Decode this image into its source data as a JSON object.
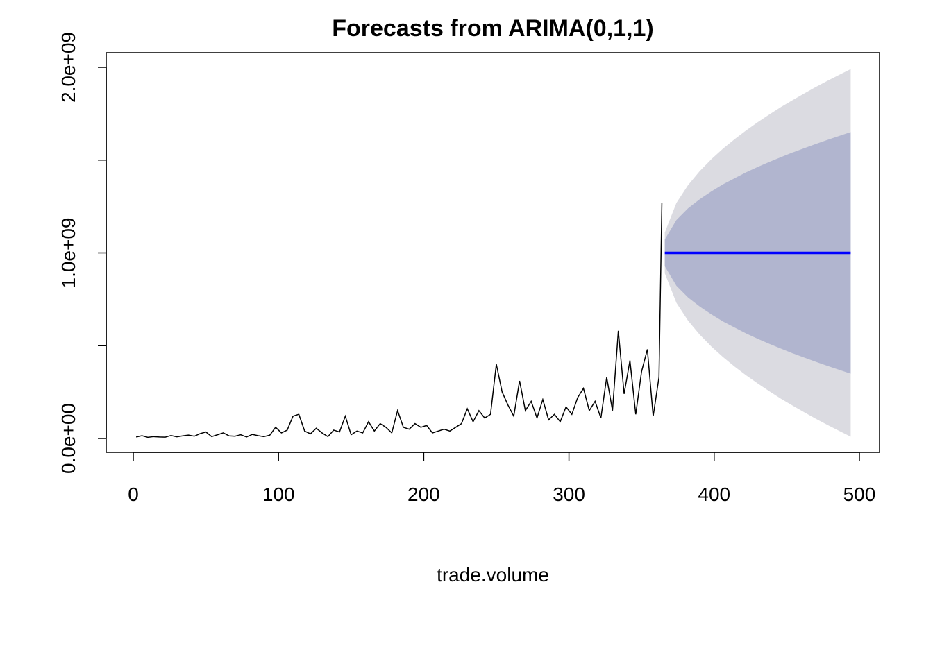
{
  "chart_data": {
    "type": "forecast",
    "title": "Forecasts from ARIMA(0,1,1)",
    "xlabel": "trade.volume",
    "xlim": [
      -18.64,
      513.88
    ],
    "ylim": [
      -74800000,
      2078500000
    ],
    "xticks": [
      0,
      100,
      200,
      300,
      400,
      500
    ],
    "yticks": [
      {
        "value": 0,
        "label": "0.0e+00"
      },
      {
        "value": 1000000000,
        "label": "1.0e+09"
      },
      {
        "value": 2000000000,
        "label": "2.0e+09"
      }
    ],
    "yminorticks": [
      500000000,
      1500000000
    ],
    "observed": {
      "color": "#000000",
      "x": [
        2,
        6,
        10,
        14,
        18,
        22,
        26,
        30,
        34,
        38,
        42,
        46,
        50,
        54,
        58,
        62,
        66,
        70,
        74,
        78,
        82,
        86,
        90,
        94,
        98,
        102,
        106,
        110,
        114,
        118,
        122,
        126,
        130,
        134,
        138,
        142,
        146,
        150,
        154,
        158,
        162,
        166,
        170,
        174,
        178,
        182,
        186,
        190,
        194,
        198,
        202,
        206,
        210,
        214,
        218,
        222,
        226,
        230,
        234,
        238,
        242,
        246,
        250,
        254,
        258,
        262,
        266,
        270,
        274,
        278,
        282,
        286,
        290,
        294,
        298,
        302,
        306,
        310,
        314,
        318,
        322,
        326,
        330,
        334,
        338,
        342,
        346,
        350,
        354,
        358,
        362,
        364
      ],
      "values": [
        8000000,
        15000000,
        6000000,
        10000000,
        8000000,
        7000000,
        16000000,
        9000000,
        14000000,
        18000000,
        12000000,
        26000000,
        35000000,
        10000000,
        20000000,
        30000000,
        14000000,
        12000000,
        20000000,
        8000000,
        22000000,
        15000000,
        10000000,
        18000000,
        60000000,
        30000000,
        45000000,
        120000000,
        130000000,
        40000000,
        25000000,
        55000000,
        30000000,
        10000000,
        45000000,
        35000000,
        120000000,
        20000000,
        40000000,
        30000000,
        90000000,
        40000000,
        80000000,
        60000000,
        30000000,
        150000000,
        60000000,
        50000000,
        80000000,
        60000000,
        70000000,
        30000000,
        40000000,
        50000000,
        40000000,
        60000000,
        80000000,
        160000000,
        90000000,
        150000000,
        110000000,
        130000000,
        400000000,
        250000000,
        180000000,
        120000000,
        310000000,
        150000000,
        200000000,
        110000000,
        210000000,
        100000000,
        130000000,
        90000000,
        170000000,
        130000000,
        220000000,
        270000000,
        150000000,
        200000000,
        110000000,
        330000000,
        150000000,
        580000000,
        240000000,
        420000000,
        130000000,
        360000000,
        480000000,
        120000000,
        330000000,
        1270000000
      ]
    },
    "forecast": {
      "color": "#0000ff",
      "band80_color": "#b1b5cf",
      "band95_color": "#dbdbe1",
      "x": [
        366,
        374,
        382,
        390,
        398,
        406,
        414,
        422,
        430,
        438,
        446,
        454,
        462,
        470,
        478,
        486,
        494
      ],
      "mean": [
        1000000000,
        1000000000,
        1000000000,
        1000000000,
        1000000000,
        1000000000,
        1000000000,
        1000000000,
        1000000000,
        1000000000,
        1000000000,
        1000000000,
        1000000000,
        1000000000,
        1000000000,
        1000000000,
        1000000000
      ],
      "lo80": [
        928000000,
        823000000,
        760000000,
        711000000,
        669000000,
        631000000,
        598000000,
        566000000,
        537000000,
        510000000,
        484000000,
        459000000,
        436000000,
        413000000,
        391000000,
        370000000,
        349000000
      ],
      "hi80": [
        1072000000,
        1177000000,
        1240000000,
        1289000000,
        1331000000,
        1369000000,
        1402000000,
        1434000000,
        1463000000,
        1490000000,
        1516000000,
        1541000000,
        1564000000,
        1587000000,
        1609000000,
        1630000000,
        1651000000
      ],
      "lo95": [
        890000000,
        731000000,
        635000000,
        560000000,
        496000000,
        439000000,
        388000000,
        340000000,
        296000000,
        254000000,
        214000000,
        177000000,
        141000000,
        106000000,
        73000000,
        41000000,
        10000000
      ],
      "hi95": [
        1110000000,
        1269000000,
        1365000000,
        1440000000,
        1504000000,
        1561000000,
        1612000000,
        1660000000,
        1704000000,
        1746000000,
        1786000000,
        1823000000,
        1859000000,
        1894000000,
        1927000000,
        1959000000,
        1990000000
      ]
    }
  }
}
